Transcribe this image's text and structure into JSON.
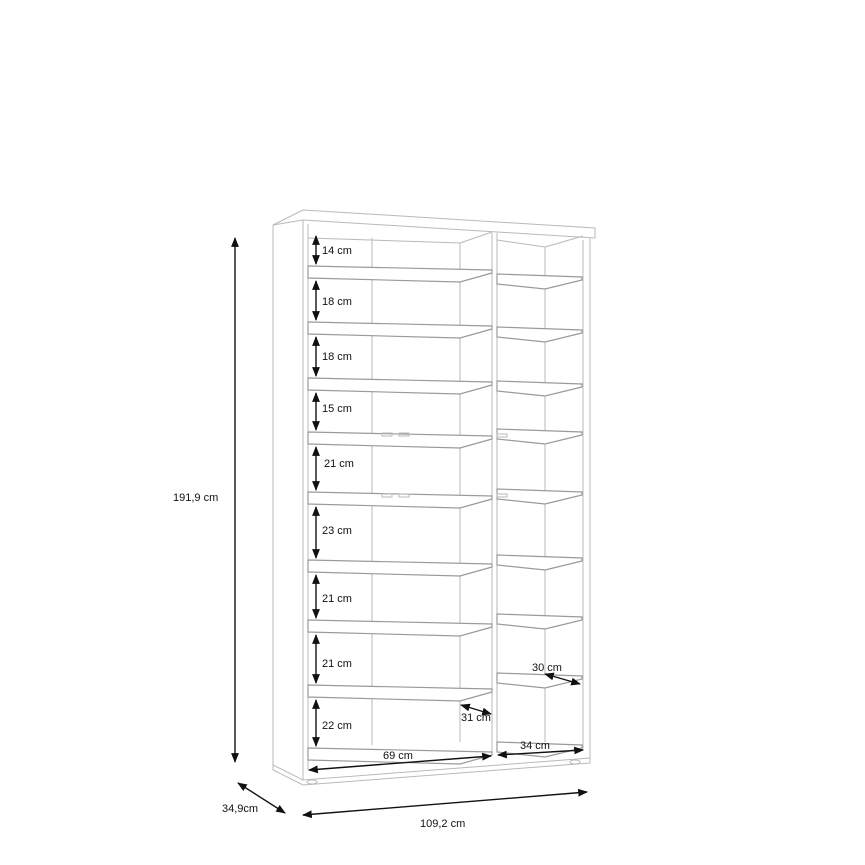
{
  "drawing": {
    "overall_height": "191,9 cm",
    "overall_depth": "34,9cm",
    "overall_width": "109,2 cm",
    "shelf_gaps_left": [
      "14 cm",
      "18 cm",
      "18 cm",
      "15 cm",
      "21 cm",
      "23 cm",
      "21 cm",
      "21 cm",
      "22 cm"
    ],
    "left_inner_width": "69 cm",
    "right_inner_width": "34 cm",
    "right_shelf_depth": "30 cm",
    "left_shelf_depth": "31 cm"
  },
  "colors": {
    "line": "#b9b9b9",
    "dimension": "#111111"
  }
}
